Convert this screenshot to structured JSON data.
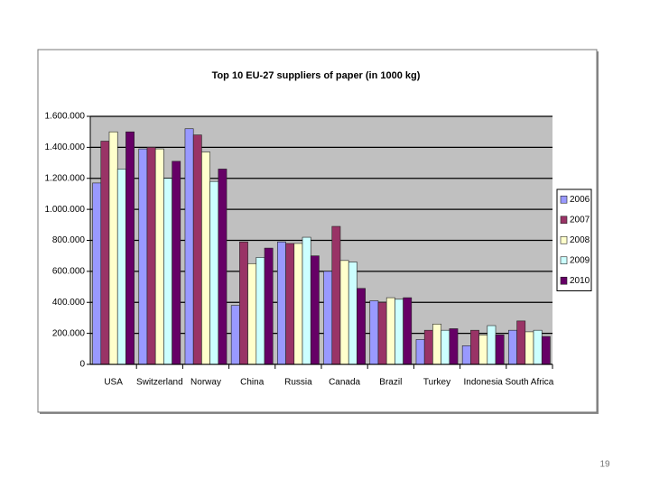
{
  "chart_data": {
    "type": "bar",
    "title": "Top 10 EU-27 suppliers of paper (in 1000 kg)",
    "categories": [
      "USA",
      "Switzerland",
      "Norway",
      "China",
      "Russia",
      "Canada",
      "Brazil",
      "Turkey",
      "Indonesia",
      "South Africa"
    ],
    "series": [
      {
        "name": "2006",
        "color": "#9999ff",
        "values": [
          1170000,
          1390000,
          1520000,
          380000,
          790000,
          600000,
          410000,
          160000,
          120000,
          220000
        ]
      },
      {
        "name": "2007",
        "color": "#993366",
        "values": [
          1440000,
          1400000,
          1480000,
          790000,
          780000,
          890000,
          400000,
          220000,
          220000,
          280000
        ]
      },
      {
        "name": "2008",
        "color": "#ffffcc",
        "values": [
          1500000,
          1390000,
          1370000,
          650000,
          780000,
          670000,
          430000,
          260000,
          190000,
          210000
        ]
      },
      {
        "name": "2009",
        "color": "#ccffff",
        "values": [
          1260000,
          1200000,
          1180000,
          690000,
          820000,
          660000,
          420000,
          220000,
          250000,
          220000
        ]
      },
      {
        "name": "2010",
        "color": "#660066",
        "values": [
          1500000,
          1310000,
          1260000,
          750000,
          700000,
          490000,
          430000,
          230000,
          190000,
          180000
        ]
      }
    ],
    "ylim": [
      0,
      1600000
    ],
    "yticks": [
      0,
      {
        "value": 200000,
        "label": "200.000"
      },
      {
        "value": 400000,
        "label": "400.000"
      },
      {
        "value": 600000,
        "label": "600.000"
      },
      {
        "value": 800000,
        "label": "800.000"
      },
      {
        "value": 1000000,
        "label": "1.000.000"
      },
      {
        "value": 1200000,
        "label": "1.200.000"
      },
      {
        "value": 1400000,
        "label": "1.400.000"
      },
      {
        "value": 1600000,
        "label": "1.600.000"
      }
    ],
    "grid": true,
    "legend": "right",
    "plot_background": "#c0c0c0"
  },
  "page_number": "19"
}
